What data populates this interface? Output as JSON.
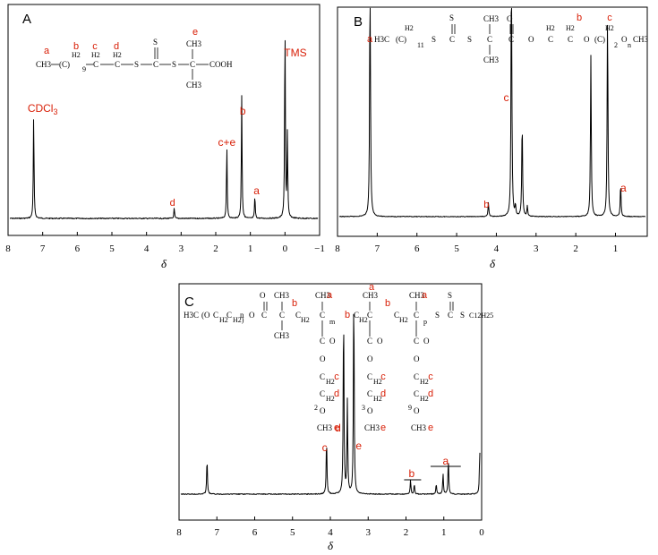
{
  "chart_data": [
    {
      "type": "line",
      "panel_label": "A",
      "xlabel": "δ",
      "xlim": [
        8,
        -1
      ],
      "x_ticks": [
        "8",
        "7",
        "6",
        "5",
        "4",
        "3",
        "2",
        "1",
        "0",
        "−1"
      ],
      "peaks": [
        {
          "x": 7.26,
          "h": 0.5
        },
        {
          "x": 3.2,
          "h": 0.05
        },
        {
          "x": 1.68,
          "h": 0.35
        },
        {
          "x": 1.25,
          "h": 0.59
        },
        {
          "x": 0.87,
          "h": 0.11
        },
        {
          "x": 0.0,
          "h": 0.95
        },
        {
          "x": -0.07,
          "h": 0.4
        }
      ],
      "peak_labels": [
        {
          "text": "CDCl3",
          "x": 7.0
        },
        {
          "text": "d",
          "x": 3.25
        },
        {
          "text": "c+e",
          "x": 1.68
        },
        {
          "text": "b",
          "x": 1.22
        },
        {
          "text": "a",
          "x": 0.82
        },
        {
          "text": "TMS",
          "x": -0.3
        }
      ],
      "structure": {
        "letters": [
          "a",
          "b",
          "c",
          "d",
          "e"
        ],
        "formula_parts": [
          "CH3",
          "(C)",
          "H2",
          "9",
          "C",
          "H2",
          "C",
          "H2",
          "S",
          "C",
          "S",
          "S",
          "C",
          "CH3",
          "CH3",
          "COOH"
        ]
      }
    },
    {
      "type": "line",
      "panel_label": "B",
      "xlabel": "δ",
      "xlim": [
        8,
        0.2
      ],
      "x_ticks": [
        "8",
        "7",
        "6",
        "5",
        "4",
        "3",
        "2",
        "1"
      ],
      "peaks": [
        {
          "x": 7.18,
          "h": 1.3
        },
        {
          "x": 4.2,
          "h": 0.07
        },
        {
          "x": 3.62,
          "h": 1.3
        },
        {
          "x": 3.52,
          "h": 0.05
        },
        {
          "x": 3.35,
          "h": 0.47
        },
        {
          "x": 3.22,
          "h": 0.05
        },
        {
          "x": 1.62,
          "h": 0.79
        },
        {
          "x": 1.2,
          "h": 1.0
        },
        {
          "x": 0.87,
          "h": 0.16
        }
      ],
      "peak_labels": [
        {
          "text": "c",
          "x": 3.75
        },
        {
          "text": "b",
          "x": 4.25
        },
        {
          "text": "a",
          "x": 0.8
        }
      ],
      "structure": {
        "letters": [
          "a",
          "b",
          "c"
        ],
        "formula_parts": [
          "H3C",
          "(C)",
          "H2",
          "11",
          "S",
          "C",
          "S",
          "S",
          "C",
          "CH3",
          "CH3",
          "C",
          "O",
          "O",
          "C",
          "H2",
          "C",
          "H2",
          "O",
          "(C)",
          "H2",
          "2",
          "O",
          "n",
          "CH3"
        ]
      }
    },
    {
      "type": "line",
      "panel_label": "C",
      "xlabel": "δ",
      "xlim": [
        8,
        0
      ],
      "x_ticks": [
        "8",
        "7",
        "6",
        "5",
        "4",
        "3",
        "2",
        "1",
        "0"
      ],
      "peaks": [
        {
          "x": 7.26,
          "h": 0.17
        },
        {
          "x": 4.1,
          "h": 0.27
        },
        {
          "x": 3.65,
          "h": 0.9
        },
        {
          "x": 3.55,
          "h": 0.45
        },
        {
          "x": 3.38,
          "h": 1.0
        },
        {
          "x": 1.88,
          "h": 0.07
        },
        {
          "x": 1.78,
          "h": 0.05
        },
        {
          "x": 1.2,
          "h": 0.05
        },
        {
          "x": 1.02,
          "h": 0.1
        },
        {
          "x": 0.88,
          "h": 0.17
        },
        {
          "x": 0.05,
          "h": 0.21
        }
      ],
      "peak_labels": [
        {
          "text": "c",
          "x": 4.15
        },
        {
          "text": "d",
          "x": 3.8
        },
        {
          "text": "e",
          "x": 3.25
        },
        {
          "text": "b",
          "x": 1.85
        },
        {
          "text": "a",
          "x": 0.95
        }
      ],
      "structure": {
        "letters": [
          "a",
          "b",
          "c",
          "d",
          "e"
        ],
        "formula_parts": [
          "H3C",
          "(O",
          "C",
          "H2",
          "C",
          "H2)",
          "n",
          "O",
          "C",
          "O",
          "C",
          "CH3",
          "CH3",
          "C",
          "H2",
          "C",
          "CH3",
          "m",
          "C",
          "O",
          "O",
          "C",
          "H2",
          "C",
          "H2",
          "O",
          "2",
          "CH3",
          "b",
          "C",
          "H2",
          "C",
          "CH3",
          "C",
          "O",
          "O",
          "C",
          "H2",
          "C",
          "H2",
          "O",
          "3",
          "CH3",
          "C",
          "H2",
          "C",
          "CH3",
          "p",
          "C",
          "O",
          "O",
          "C",
          "H2",
          "C",
          "H2",
          "O",
          "9",
          "CH3",
          "S",
          "C",
          "S",
          "S",
          "C12H25"
        ]
      }
    }
  ],
  "labels": {
    "cdcl3_sub": "3"
  }
}
